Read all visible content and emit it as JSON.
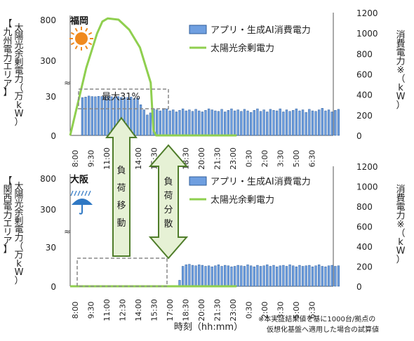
{
  "colors": {
    "bar_fill": "#6f9fe0",
    "bar_stroke": "#2f5e9a",
    "line": "#8fcf4f",
    "arrow_fill": "#e6f1d5",
    "arrow_stroke": "#4f7d2a",
    "sun": "#f08a1e",
    "umbrella": "#2f78c4",
    "dash_box": "#888888"
  },
  "icons": {
    "top": "sun-icon",
    "bottom": "umbrella-icon"
  },
  "xlabel": "時刻（hh:mm）",
  "footnote": [
    "※本実証結果値を基に1000台/拠点の",
    "仮想化基盤へ適用した場合の試算値"
  ],
  "chart_data": [
    {
      "type": "bar",
      "region_label": "【九州電力エリア】",
      "location": "福岡",
      "ylabel_left": "太陽光余剰電力（万kW）",
      "ylabel_right": "消費電力※（kW）",
      "ylim_left": [
        0,
        30
      ],
      "ylim_left_upper": [
        300,
        800
      ],
      "yticks_left_lower": [
        "0",
        "30"
      ],
      "yticks_left_upper": [
        "300",
        "800"
      ],
      "ylim_right": [
        0,
        1200
      ],
      "yticks_right": [
        "0",
        "200",
        "400",
        "600",
        "800",
        "1000",
        "1200"
      ],
      "x_ticks": [
        "8:00",
        "9:30",
        "11:00",
        "12:30",
        "14:00",
        "15:30",
        "17:00",
        "18:30",
        "20:00",
        "21:30",
        "23:00",
        "0:30",
        "2:00",
        "3:30",
        "5:00",
        "6:30"
      ],
      "series": [
        {
          "name": "アプリ・生成AI消費電力",
          "kind": "bar",
          "values": [
            370,
            375,
            385,
            380,
            378,
            382,
            380,
            376,
            380,
            378,
            375,
            380,
            372,
            368,
            372,
            375,
            360,
            365,
            300,
            250,
            200,
            220,
            260,
            250,
            240,
            255,
            260,
            240,
            250,
            230,
            245,
            260,
            240,
            250,
            235,
            255,
            240,
            230,
            245,
            260,
            250,
            240,
            235,
            255,
            230,
            245,
            260,
            240,
            250,
            235,
            255,
            240,
            225,
            245,
            260,
            235,
            250,
            230,
            255,
            245,
            240,
            260,
            230,
            250,
            235,
            245,
            260,
            240,
            250,
            225,
            255,
            240,
            235,
            250,
            265,
            240,
            250,
            230,
            245,
            255
          ]
        },
        {
          "name": "太陽光余剰電力",
          "kind": "line",
          "points": [
            [
              0,
              0
            ],
            [
              1.5,
              420
            ],
            [
              2.5,
              690
            ],
            [
              3,
              785
            ],
            [
              3.5,
              810
            ],
            [
              4.5,
              800
            ],
            [
              5.5,
              720
            ],
            [
              6.5,
              580
            ],
            [
              7.5,
              300
            ],
            [
              7.75,
              30
            ],
            [
              8,
              0
            ],
            [
              15.5,
              0
            ]
          ]
        }
      ],
      "annotation": "最大31%"
    },
    {
      "type": "bar",
      "region_label": "【関西電力エリア】",
      "location": "大阪",
      "ylabel_left": "太陽光余剰電力（万kW）",
      "ylabel_right": "消費電力※（kW）",
      "ylim_left": [
        0,
        30
      ],
      "ylim_left_upper": [
        300,
        800
      ],
      "yticks_left_lower": [
        "0",
        "30"
      ],
      "yticks_left_upper": [
        "300",
        "800"
      ],
      "ylim_right": [
        0,
        1200
      ],
      "yticks_right": [
        "0",
        "200",
        "400",
        "600",
        "800",
        "1000",
        "1200"
      ],
      "x_ticks": [
        "8:00",
        "9:30",
        "11:00",
        "12:30",
        "14:00",
        "15:30",
        "17:00",
        "18:30",
        "20:00",
        "21:30",
        "23:00",
        "0:30",
        "2:00",
        "3:30",
        "5:00",
        "6:30"
      ],
      "series": [
        {
          "name": "アプリ・生成AI消費電力",
          "kind": "bar",
          "values": [
            0,
            0,
            0,
            0,
            0,
            0,
            0,
            0,
            0,
            0,
            0,
            0,
            0,
            0,
            0,
            0,
            0,
            0,
            0,
            0,
            0,
            0,
            0,
            0,
            0,
            0,
            0,
            0,
            0,
            0,
            60,
            200,
            215,
            220,
            210,
            205,
            215,
            210,
            200,
            205,
            195,
            205,
            215,
            200,
            210,
            205,
            195,
            200,
            210,
            205,
            200,
            215,
            205,
            195,
            210,
            200,
            205,
            215,
            200,
            210,
            195,
            205,
            210,
            200,
            215,
            205,
            195,
            210,
            200,
            205,
            210,
            195,
            205,
            215,
            200,
            195,
            205,
            210,
            200,
            205
          ]
        },
        {
          "name": "太陽光余剰電力",
          "kind": "line",
          "points": [
            [
              0,
              0
            ],
            [
              15.5,
              0
            ]
          ]
        }
      ],
      "annotation": ""
    }
  ],
  "arrows": [
    {
      "label": [
        "負",
        "荷",
        "移",
        "動"
      ]
    },
    {
      "label": [
        "負",
        "荷",
        "分",
        "散"
      ]
    }
  ]
}
